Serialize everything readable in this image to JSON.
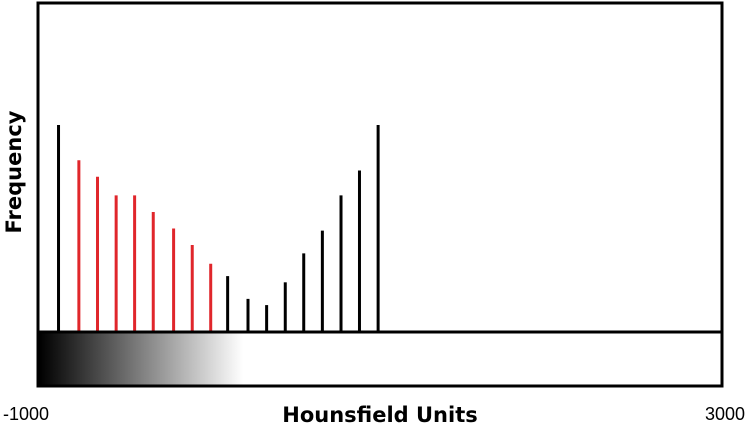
{
  "chart_data": {
    "type": "bar",
    "title": "",
    "xlabel": "Hounsfield Units",
    "ylabel": "Frequency",
    "xlim": [
      -1000,
      3000
    ],
    "x_tick_labels": [
      "-1000",
      "3000"
    ],
    "grid": false,
    "legend": "none",
    "colors": {
      "highlight": "#e0262b",
      "default": "#000000",
      "gradient_dark": "#000000",
      "gradient_light": "#ffffff"
    },
    "gradient_bar": {
      "from_value": -1000,
      "to_value": 200
    },
    "bars": [
      {
        "x": -880,
        "value": 100,
        "highlight": false
      },
      {
        "x": -761,
        "value": 83,
        "highlight": true
      },
      {
        "x": -652,
        "value": 75,
        "highlight": true
      },
      {
        "x": -543,
        "value": 66,
        "highlight": true
      },
      {
        "x": -435,
        "value": 66,
        "highlight": true
      },
      {
        "x": -326,
        "value": 58,
        "highlight": true
      },
      {
        "x": -207,
        "value": 50,
        "highlight": true
      },
      {
        "x": -98,
        "value": 42,
        "highlight": true
      },
      {
        "x": 10,
        "value": 33,
        "highlight": true
      },
      {
        "x": 109,
        "value": 27,
        "highlight": false
      },
      {
        "x": 228,
        "value": 16,
        "highlight": false
      },
      {
        "x": 337,
        "value": 13,
        "highlight": false
      },
      {
        "x": 446,
        "value": 24,
        "highlight": false
      },
      {
        "x": 554,
        "value": 38,
        "highlight": false
      },
      {
        "x": 663,
        "value": 49,
        "highlight": false
      },
      {
        "x": 772,
        "value": 66,
        "highlight": false
      },
      {
        "x": 880,
        "value": 78,
        "highlight": false
      },
      {
        "x": 989,
        "value": 100,
        "highlight": false
      }
    ]
  }
}
